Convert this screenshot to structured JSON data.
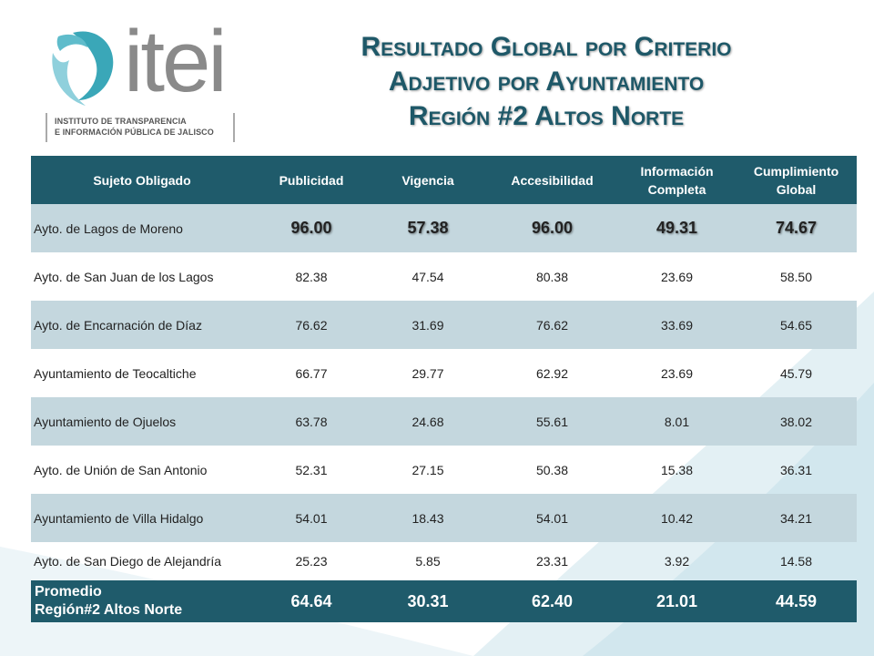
{
  "logo": {
    "wordmark": "itei",
    "subtitle_lines": [
      "INSTITUTO DE TRANSPARENCIA",
      "E INFORMACIÓN PÚBLICA DE JALISCO"
    ],
    "icon": "itei-swirl-icon"
  },
  "title_lines": [
    "Resultado Global por Criterio",
    "Adjetivo por Ayuntamiento",
    "Región #2  Altos Norte"
  ],
  "colors": {
    "header_bg": "#1f5b6b",
    "band_bg": "#c4d7de",
    "title": "#1e5868"
  },
  "table": {
    "headers": [
      "Sujeto Obligado",
      "Publicidad",
      "Vigencia",
      "Accesibilidad",
      "Información Completa",
      "Cumplimiento Global"
    ],
    "rows": [
      {
        "name": "Ayto. de Lagos de Moreno",
        "values": [
          "96.00",
          "57.38",
          "96.00",
          "49.31",
          "74.67"
        ]
      },
      {
        "name": "Ayto. de San Juan de los Lagos",
        "values": [
          "82.38",
          "47.54",
          "80.38",
          "23.69",
          "58.50"
        ]
      },
      {
        "name": "Ayto. de Encarnación de Díaz",
        "values": [
          "76.62",
          "31.69",
          "76.62",
          "33.69",
          "54.65"
        ]
      },
      {
        "name": "Ayuntamiento de Teocaltiche",
        "values": [
          "66.77",
          "29.77",
          "62.92",
          "23.69",
          "45.79"
        ]
      },
      {
        "name": "Ayuntamiento de Ojuelos",
        "values": [
          "63.78",
          "24.68",
          "55.61",
          "8.01",
          "38.02"
        ]
      },
      {
        "name": "Ayto. de Unión de San Antonio",
        "values": [
          "52.31",
          "27.15",
          "50.38",
          "15.38",
          "36.31"
        ]
      },
      {
        "name": "Ayuntamiento de Villa Hidalgo",
        "values": [
          "54.01",
          "18.43",
          "54.01",
          "10.42",
          "34.21"
        ]
      },
      {
        "name": "Ayto. de San Diego de Alejandría",
        "values": [
          "25.23",
          "5.85",
          "23.31",
          "3.92",
          "14.58"
        ]
      }
    ],
    "total": {
      "name_lines": [
        "Promedio",
        "Región#2  Altos Norte"
      ],
      "values": [
        "64.64",
        "30.31",
        "62.40",
        "21.01",
        "44.59"
      ]
    }
  }
}
